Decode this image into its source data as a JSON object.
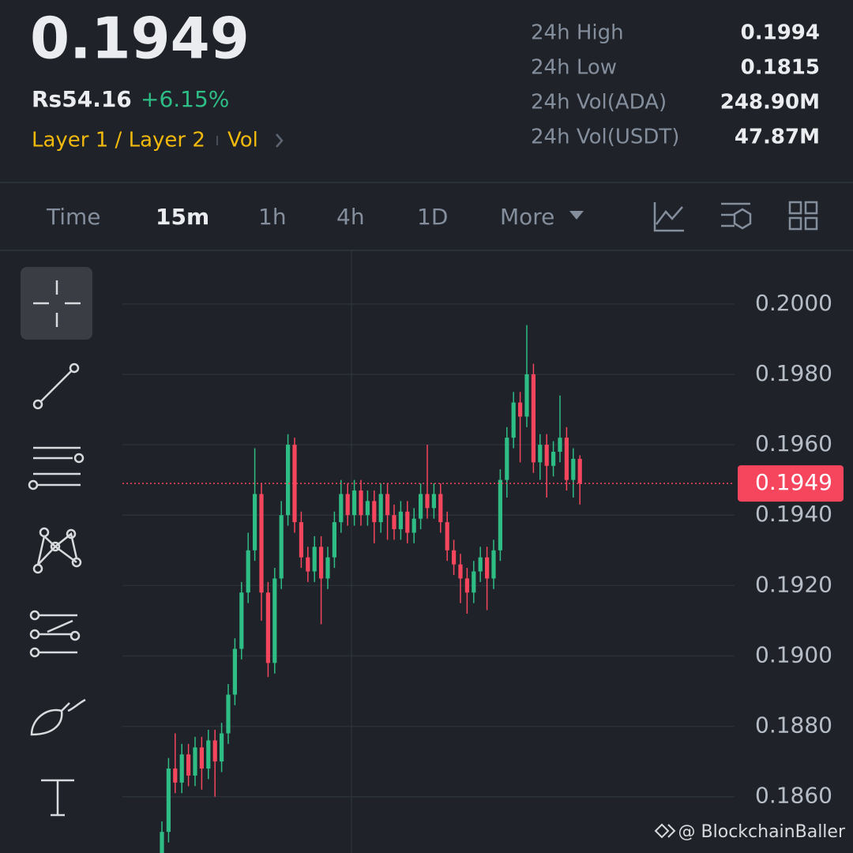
{
  "header": {
    "price": "0.1949",
    "fiat_price": "Rs54.16",
    "change": "+6.15%",
    "tags": [
      "Layer 1 / Layer 2",
      "Vol"
    ],
    "stats": [
      {
        "label": "24h High",
        "value": "0.1994"
      },
      {
        "label": "24h Low",
        "value": "0.1815"
      },
      {
        "label": "24h Vol(ADA)",
        "value": "248.90M"
      },
      {
        "label": "24h Vol(USDT)",
        "value": "47.87M"
      }
    ]
  },
  "tabs": [
    "Time",
    "15m",
    "1h",
    "4h",
    "1D",
    "More"
  ],
  "watermark": "@ BlockchainBaller",
  "chart_data": {
    "type": "candlestick",
    "up_color": "#2ebd85",
    "down_color": "#f6465d",
    "ylim": [
      0.1844,
      0.2015
    ],
    "yticks": [
      {
        "value": 0.2,
        "label": "0.2000"
      },
      {
        "value": 0.198,
        "label": "0.1980"
      },
      {
        "value": 0.196,
        "label": "0.1960"
      },
      {
        "value": 0.194,
        "label": "0.1940"
      },
      {
        "value": 0.192,
        "label": "0.1920"
      },
      {
        "value": 0.19,
        "label": "0.1900"
      },
      {
        "value": 0.188,
        "label": "0.1880"
      },
      {
        "value": 0.186,
        "label": "0.1860"
      }
    ],
    "grid": true,
    "last_price": 0.1949,
    "open": [
      0.1844,
      0.185,
      0.1868,
      0.1864,
      0.1872,
      0.1866,
      0.1874,
      0.1868,
      0.1876,
      0.187,
      0.1878,
      0.1889,
      0.1902,
      0.1918,
      0.193,
      0.1946,
      0.1918,
      0.1898,
      0.1922,
      0.194,
      0.196,
      0.1938,
      0.1928,
      0.1924,
      0.1931,
      0.1922,
      0.1928,
      0.1938,
      0.1946,
      0.194,
      0.1947,
      0.194,
      0.1944,
      0.1938,
      0.1946,
      0.194,
      0.1936,
      0.1941,
      0.1935,
      0.1939,
      0.1946,
      0.1942,
      0.1946,
      0.1938,
      0.193,
      0.1926,
      0.1922,
      0.1918,
      0.1924,
      0.1928,
      0.1922,
      0.193,
      0.195,
      0.1962,
      0.1972,
      0.1968,
      0.198,
      0.1955,
      0.196,
      0.1954,
      0.1958,
      0.1962,
      0.195,
      0.1956
    ],
    "high": [
      0.1853,
      0.1871,
      0.1878,
      0.1875,
      0.1875,
      0.1877,
      0.1877,
      0.1879,
      0.1879,
      0.1881,
      0.1892,
      0.1905,
      0.1921,
      0.1935,
      0.1959,
      0.1949,
      0.1921,
      0.1925,
      0.1944,
      0.1963,
      0.1962,
      0.1941,
      0.1931,
      0.1934,
      0.1934,
      0.1931,
      0.1941,
      0.195,
      0.1949,
      0.195,
      0.195,
      0.1947,
      0.1947,
      0.1949,
      0.1949,
      0.1943,
      0.1944,
      0.1944,
      0.1942,
      0.1949,
      0.196,
      0.1949,
      0.1949,
      0.1941,
      0.1933,
      0.1929,
      0.1925,
      0.1927,
      0.1931,
      0.1931,
      0.1933,
      0.1953,
      0.1965,
      0.1975,
      0.1975,
      0.1994,
      0.1983,
      0.1963,
      0.1963,
      0.1961,
      0.1974,
      0.1965,
      0.1959,
      0.1957
    ],
    "low": [
      0.1841,
      0.1847,
      0.1861,
      0.1861,
      0.1863,
      0.1863,
      0.1862,
      0.1865,
      0.186,
      0.1867,
      0.1875,
      0.1886,
      0.1899,
      0.1915,
      0.1927,
      0.191,
      0.1894,
      0.1895,
      0.1919,
      0.1937,
      0.1935,
      0.1925,
      0.1921,
      0.1921,
      0.1909,
      0.1919,
      0.1925,
      0.1935,
      0.1937,
      0.1937,
      0.1937,
      0.1937,
      0.1932,
      0.1935,
      0.1933,
      0.1933,
      0.1933,
      0.1932,
      0.1932,
      0.1936,
      0.1939,
      0.1939,
      0.1935,
      0.1927,
      0.1923,
      0.1915,
      0.1912,
      0.1915,
      0.1921,
      0.1913,
      0.1919,
      0.1927,
      0.1945,
      0.1959,
      0.1955,
      0.1965,
      0.1952,
      0.195,
      0.1945,
      0.1951,
      0.1955,
      0.1947,
      0.1945,
      0.1943
    ],
    "close": [
      0.185,
      0.1868,
      0.1864,
      0.1872,
      0.1866,
      0.1874,
      0.1868,
      0.1876,
      0.187,
      0.1878,
      0.1889,
      0.1902,
      0.1918,
      0.193,
      0.1946,
      0.1918,
      0.1898,
      0.1922,
      0.194,
      0.196,
      0.1938,
      0.1928,
      0.1924,
      0.1931,
      0.1922,
      0.1928,
      0.1938,
      0.1946,
      0.194,
      0.1947,
      0.194,
      0.1944,
      0.1938,
      0.1946,
      0.194,
      0.1936,
      0.1941,
      0.1935,
      0.1939,
      0.1946,
      0.1942,
      0.1946,
      0.1938,
      0.193,
      0.1926,
      0.1922,
      0.1918,
      0.1924,
      0.1928,
      0.1922,
      0.193,
      0.195,
      0.1962,
      0.1972,
      0.1968,
      0.198,
      0.1955,
      0.196,
      0.1954,
      0.1958,
      0.1962,
      0.195,
      0.1956,
      0.1949
    ]
  }
}
